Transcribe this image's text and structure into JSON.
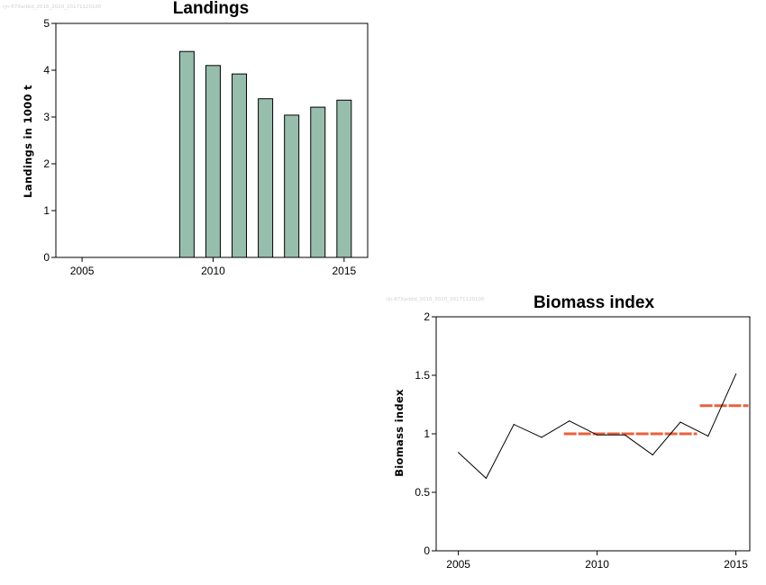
{
  "chart_data": [
    {
      "type": "bar",
      "title": "Landings",
      "watermark": "rjn-67Xarbtd_2016_2020_20171120100",
      "ylabel": "Landings in 1000 t",
      "xlabel": "",
      "xlim": [
        2004,
        2015.9
      ],
      "ylim": [
        0,
        5
      ],
      "x_ticks": [
        2005,
        2010,
        2015
      ],
      "y_ticks": [
        0,
        1,
        2,
        3,
        4,
        5
      ],
      "bar_color": "#97bdad",
      "x": [
        2009,
        2010,
        2011,
        2012,
        2013,
        2014,
        2015
      ],
      "values": [
        4.4,
        4.1,
        3.92,
        3.39,
        3.04,
        3.21,
        3.36
      ]
    },
    {
      "type": "line",
      "title": "Biomass index",
      "watermark": "rjn-67Xarbtd_2016_2020_20171120100",
      "ylabel": "Biomass index",
      "xlabel": "",
      "xlim": [
        2004.2,
        2015.5
      ],
      "ylim": [
        0,
        2
      ],
      "x_ticks": [
        2005,
        2010,
        2015
      ],
      "y_ticks": [
        0,
        0.5,
        1,
        1.5,
        2
      ],
      "y_tick_labels": [
        "0",
        "0.5",
        "1",
        "1.5",
        "2"
      ],
      "line_color": "#000000",
      "x": [
        2005,
        2006,
        2007,
        2008,
        2009,
        2010,
        2011,
        2012,
        2013,
        2014,
        2015
      ],
      "values": [
        0.84,
        0.62,
        1.08,
        0.97,
        1.11,
        0.99,
        0.99,
        0.82,
        1.1,
        0.98,
        1.51
      ],
      "reference_color": "#e8623c",
      "reference_lines": [
        {
          "x_start": 2008.8,
          "x_end": 2013.6,
          "y": 1.0
        },
        {
          "x_start": 2013.7,
          "x_end": 2015.45,
          "y": 1.24
        }
      ]
    }
  ]
}
